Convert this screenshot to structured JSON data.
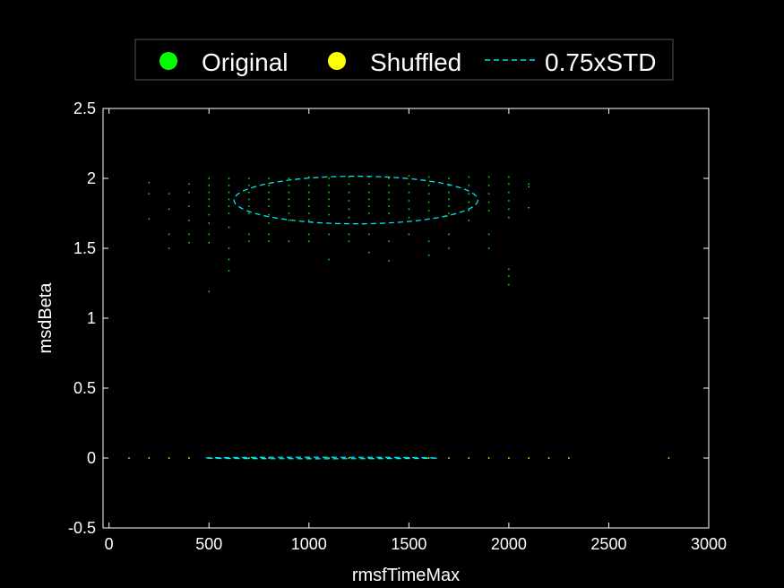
{
  "chart_data": {
    "type": "scatter",
    "xlabel": "rmsfTimeMax",
    "ylabel": "msdBeta",
    "xlim": [
      -30,
      3000
    ],
    "ylim": [
      -0.5,
      2.5
    ],
    "xticks": [
      0,
      500,
      1000,
      1500,
      2000,
      2500,
      3000
    ],
    "xtick_labels": [
      "0",
      "500",
      "1000",
      "1500",
      "2000",
      "2500",
      "3000"
    ],
    "yticks": [
      -0.5,
      0,
      0.5,
      1,
      1.5,
      2,
      2.5
    ],
    "ytick_labels": [
      "-0.5",
      "0",
      "0.5",
      "1",
      "1.5",
      "2",
      "2.5"
    ],
    "grid": false,
    "legend_position": "top-outside",
    "background": "#000000",
    "axis_color": "#ffffff",
    "series": [
      {
        "name": "Original",
        "marker": "point",
        "color": "#00ff00",
        "points": [
          [
            200,
            1.97
          ],
          [
            200,
            1.89
          ],
          [
            200,
            1.71
          ],
          [
            300,
            1.89
          ],
          [
            300,
            1.78
          ],
          [
            300,
            1.6
          ],
          [
            300,
            1.5
          ],
          [
            400,
            1.96
          ],
          [
            400,
            1.9
          ],
          [
            400,
            1.8
          ],
          [
            400,
            1.7
          ],
          [
            400,
            1.6
          ],
          [
            400,
            1.54
          ],
          [
            500,
            2.0
          ],
          [
            500,
            1.95
          ],
          [
            500,
            1.9
          ],
          [
            500,
            1.85
          ],
          [
            500,
            1.8
          ],
          [
            500,
            1.74
          ],
          [
            500,
            1.68
          ],
          [
            500,
            1.6
          ],
          [
            500,
            1.54
          ],
          [
            500,
            1.19
          ],
          [
            600,
            2.0
          ],
          [
            600,
            1.95
          ],
          [
            600,
            1.9
          ],
          [
            600,
            1.85
          ],
          [
            600,
            1.8
          ],
          [
            600,
            1.75
          ],
          [
            600,
            1.65
          ],
          [
            600,
            1.5
          ],
          [
            600,
            1.42
          ],
          [
            600,
            1.34
          ],
          [
            700,
            2.0
          ],
          [
            700,
            1.95
          ],
          [
            700,
            1.9
          ],
          [
            700,
            1.85
          ],
          [
            700,
            1.8
          ],
          [
            700,
            1.75
          ],
          [
            700,
            1.6
          ],
          [
            700,
            1.55
          ],
          [
            800,
            2.0
          ],
          [
            800,
            1.95
          ],
          [
            800,
            1.9
          ],
          [
            800,
            1.85
          ],
          [
            800,
            1.8
          ],
          [
            800,
            1.74
          ],
          [
            800,
            1.68
          ],
          [
            800,
            1.6
          ],
          [
            800,
            1.55
          ],
          [
            900,
            2.0
          ],
          [
            900,
            1.95
          ],
          [
            900,
            1.9
          ],
          [
            900,
            1.85
          ],
          [
            900,
            1.8
          ],
          [
            900,
            1.75
          ],
          [
            900,
            1.7
          ],
          [
            900,
            1.55
          ],
          [
            1000,
            2.01
          ],
          [
            1000,
            1.95
          ],
          [
            1000,
            1.9
          ],
          [
            1000,
            1.85
          ],
          [
            1000,
            1.8
          ],
          [
            1000,
            1.75
          ],
          [
            1000,
            1.7
          ],
          [
            1000,
            1.6
          ],
          [
            1000,
            1.55
          ],
          [
            1100,
            2.0
          ],
          [
            1100,
            1.95
          ],
          [
            1100,
            1.9
          ],
          [
            1100,
            1.85
          ],
          [
            1100,
            1.8
          ],
          [
            1100,
            1.74
          ],
          [
            1100,
            1.6
          ],
          [
            1100,
            1.42
          ],
          [
            1200,
            2.01
          ],
          [
            1200,
            1.96
          ],
          [
            1200,
            1.9
          ],
          [
            1200,
            1.84
          ],
          [
            1200,
            1.78
          ],
          [
            1200,
            1.72
          ],
          [
            1200,
            1.6
          ],
          [
            1200,
            1.55
          ],
          [
            1300,
            2.01
          ],
          [
            1300,
            1.96
          ],
          [
            1300,
            1.9
          ],
          [
            1300,
            1.85
          ],
          [
            1300,
            1.8
          ],
          [
            1300,
            1.75
          ],
          [
            1300,
            1.6
          ],
          [
            1300,
            1.47
          ],
          [
            1400,
            2.0
          ],
          [
            1400,
            1.95
          ],
          [
            1400,
            1.9
          ],
          [
            1400,
            1.85
          ],
          [
            1400,
            1.8
          ],
          [
            1400,
            1.75
          ],
          [
            1400,
            1.55
          ],
          [
            1400,
            1.41
          ],
          [
            1500,
            2.02
          ],
          [
            1500,
            1.96
          ],
          [
            1500,
            1.9
          ],
          [
            1500,
            1.84
          ],
          [
            1500,
            1.78
          ],
          [
            1500,
            1.72
          ],
          [
            1500,
            1.6
          ],
          [
            1600,
            2.01
          ],
          [
            1600,
            1.95
          ],
          [
            1600,
            1.89
          ],
          [
            1600,
            1.83
          ],
          [
            1600,
            1.77
          ],
          [
            1600,
            1.71
          ],
          [
            1600,
            1.55
          ],
          [
            1600,
            1.45
          ],
          [
            1700,
            2.0
          ],
          [
            1700,
            1.95
          ],
          [
            1700,
            1.9
          ],
          [
            1700,
            1.85
          ],
          [
            1700,
            1.8
          ],
          [
            1700,
            1.75
          ],
          [
            1700,
            1.6
          ],
          [
            1700,
            1.5
          ],
          [
            1800,
            2.01
          ],
          [
            1800,
            1.95
          ],
          [
            1800,
            1.89
          ],
          [
            1800,
            1.83
          ],
          [
            1800,
            1.77
          ],
          [
            1800,
            1.7
          ],
          [
            1900,
            2.01
          ],
          [
            1900,
            1.95
          ],
          [
            1900,
            1.89
          ],
          [
            1900,
            1.83
          ],
          [
            1900,
            1.77
          ],
          [
            1900,
            1.6
          ],
          [
            1900,
            1.5
          ],
          [
            2000,
            2.01
          ],
          [
            2000,
            1.96
          ],
          [
            2000,
            1.9
          ],
          [
            2000,
            1.84
          ],
          [
            2000,
            1.78
          ],
          [
            2000,
            1.72
          ],
          [
            2000,
            1.35
          ],
          [
            2000,
            1.3
          ],
          [
            2000,
            1.24
          ],
          [
            2100,
            1.96
          ],
          [
            2100,
            1.94
          ],
          [
            2100,
            1.79
          ]
        ]
      },
      {
        "name": "Shuffled",
        "marker": "point",
        "color": "#ffff00",
        "points": [
          [
            100,
            0
          ],
          [
            200,
            0
          ],
          [
            300,
            0
          ],
          [
            400,
            0
          ],
          [
            500,
            0
          ],
          [
            600,
            0
          ],
          [
            700,
            0
          ],
          [
            800,
            0
          ],
          [
            900,
            0
          ],
          [
            1000,
            0
          ],
          [
            1100,
            0
          ],
          [
            1200,
            0
          ],
          [
            1300,
            0
          ],
          [
            1400,
            0
          ],
          [
            1500,
            0
          ],
          [
            1600,
            0
          ],
          [
            1700,
            0
          ],
          [
            1800,
            0
          ],
          [
            1900,
            0
          ],
          [
            2000,
            0
          ],
          [
            2100,
            0
          ],
          [
            2200,
            0
          ],
          [
            2300,
            0
          ],
          [
            2800,
            0
          ]
        ]
      },
      {
        "name": "0.75xSTD",
        "marker": "dashed-ellipse",
        "color": "#00e5ee",
        "ellipses": [
          {
            "cx": 1235,
            "cy": 1.845,
            "rx": 610,
            "ry": 0.17
          },
          {
            "cx": 1060,
            "cy": 0.0,
            "rx": 580,
            "ry": 0.002
          }
        ]
      }
    ]
  }
}
